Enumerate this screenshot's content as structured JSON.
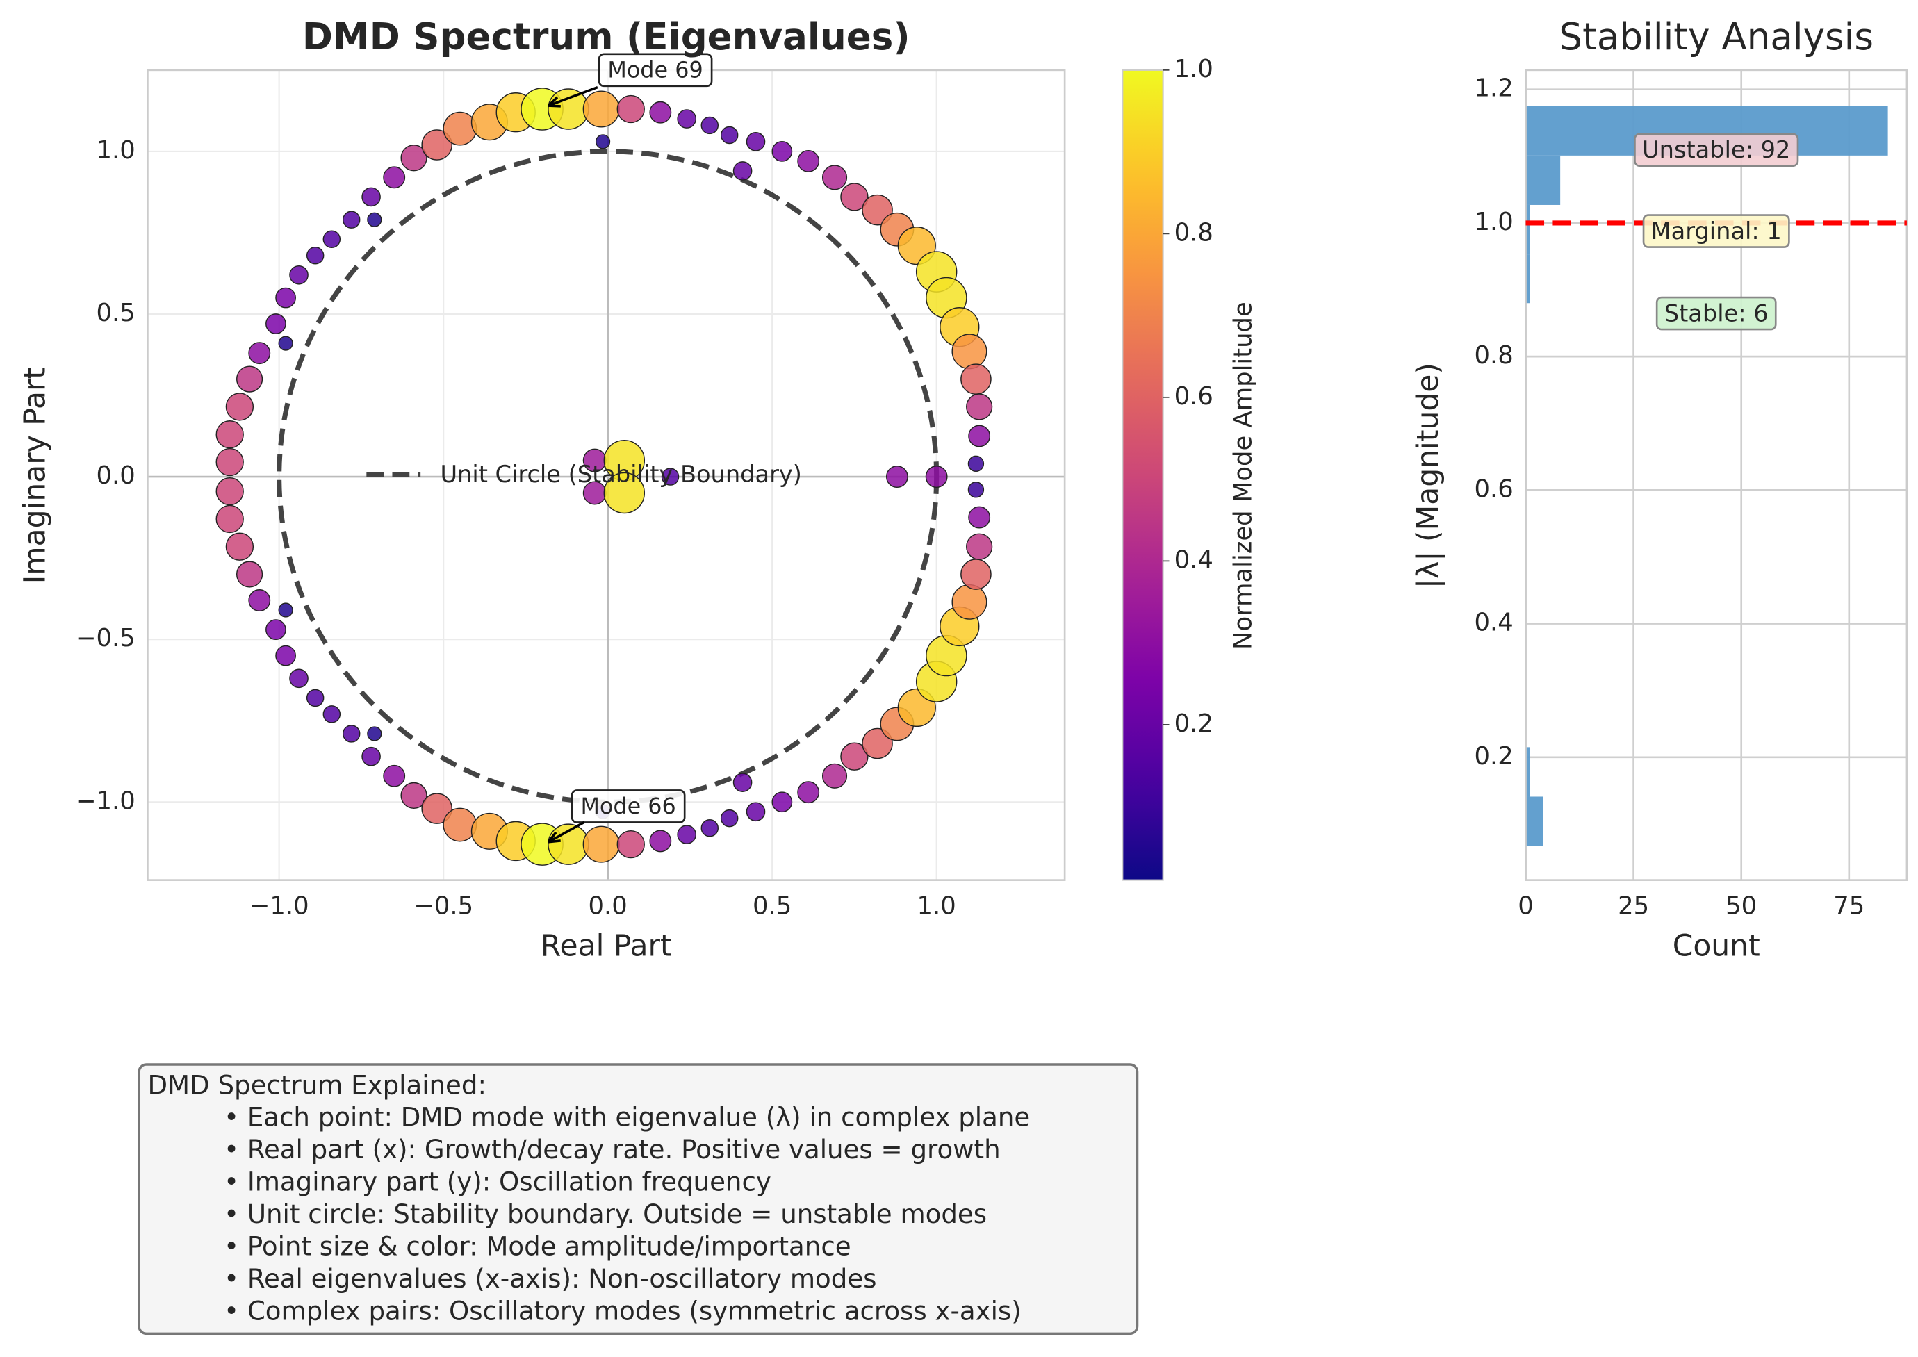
{
  "chart_data": [
    {
      "type": "scatter",
      "title": "DMD Spectrum (Eigenvalues)",
      "xlabel": "Real Part",
      "ylabel": "Imaginary Part",
      "x": [
        -1.15,
        -1.15,
        -1.12,
        -1.09,
        -1.06,
        -1.01,
        -0.98,
        -0.94,
        -0.89,
        -0.84,
        -0.78,
        -0.72,
        -0.65,
        -0.59,
        -0.52,
        -0.45,
        -0.36,
        -0.28,
        -0.2,
        -0.12,
        -0.02,
        0.07,
        0.16,
        0.24,
        0.31,
        0.37,
        0.45,
        0.53,
        0.61,
        0.69,
        0.75,
        0.82,
        0.88,
        0.94,
        1.0,
        1.03,
        1.07,
        1.1,
        1.12,
        1.13,
        1.13,
        1.12,
        -0.015,
        0.41,
        -0.71,
        -0.98,
        -0.04,
        0.05,
        -1.15,
        -1.15,
        -1.12,
        -1.09,
        -1.06,
        -1.01,
        -0.98,
        -0.94,
        -0.89,
        -0.84,
        -0.78,
        -0.72,
        -0.65,
        -0.59,
        -0.52,
        -0.45,
        -0.36,
        -0.28,
        -0.2,
        -0.12,
        -0.02,
        0.07,
        0.16,
        0.24,
        0.31,
        0.37,
        0.45,
        0.53,
        0.61,
        0.69,
        0.75,
        0.82,
        0.88,
        0.94,
        1.0,
        1.03,
        1.07,
        1.1,
        1.12,
        1.13,
        1.13,
        1.12,
        -0.015,
        0.41,
        -0.71,
        -0.98,
        -0.04,
        0.05,
        0.88,
        1.0,
        0.19
      ],
      "y": [
        0.045,
        0.13,
        0.215,
        0.3,
        0.38,
        0.47,
        0.55,
        0.62,
        0.68,
        0.73,
        0.79,
        0.86,
        0.92,
        0.98,
        1.02,
        1.07,
        1.09,
        1.12,
        1.13,
        1.13,
        1.13,
        1.13,
        1.12,
        1.1,
        1.08,
        1.05,
        1.03,
        1.0,
        0.97,
        0.92,
        0.86,
        0.82,
        0.76,
        0.71,
        0.63,
        0.55,
        0.46,
        0.385,
        0.3,
        0.215,
        0.125,
        0.04,
        1.03,
        0.94,
        0.79,
        0.41,
        0.05,
        0.05,
        -0.045,
        -0.13,
        -0.215,
        -0.3,
        -0.38,
        -0.47,
        -0.55,
        -0.62,
        -0.68,
        -0.73,
        -0.79,
        -0.86,
        -0.92,
        -0.98,
        -1.02,
        -1.07,
        -1.09,
        -1.12,
        -1.13,
        -1.13,
        -1.13,
        -1.13,
        -1.12,
        -1.1,
        -1.08,
        -1.05,
        -1.03,
        -1.0,
        -0.97,
        -0.92,
        -0.86,
        -0.82,
        -0.76,
        -0.71,
        -0.63,
        -0.55,
        -0.46,
        -0.385,
        -0.3,
        -0.215,
        -0.125,
        -0.04,
        -1.03,
        -0.94,
        -0.79,
        -0.41,
        -0.05,
        -0.05,
        0,
        0,
        0
      ],
      "amplitude": [
        0.5,
        0.5,
        0.5,
        0.45,
        0.3,
        0.25,
        0.25,
        0.2,
        0.15,
        0.15,
        0.15,
        0.2,
        0.3,
        0.45,
        0.6,
        0.7,
        0.8,
        0.9,
        1.0,
        0.95,
        0.8,
        0.5,
        0.3,
        0.2,
        0.15,
        0.15,
        0.2,
        0.25,
        0.3,
        0.4,
        0.5,
        0.6,
        0.7,
        0.85,
        0.95,
        0.95,
        0.9,
        0.75,
        0.6,
        0.45,
        0.3,
        0.1,
        0.05,
        0.2,
        0.05,
        0.05,
        0.35,
        0.95,
        0.5,
        0.5,
        0.5,
        0.45,
        0.3,
        0.25,
        0.25,
        0.2,
        0.15,
        0.15,
        0.15,
        0.2,
        0.3,
        0.45,
        0.6,
        0.7,
        0.8,
        0.9,
        1.0,
        0.95,
        0.8,
        0.5,
        0.3,
        0.2,
        0.15,
        0.15,
        0.2,
        0.25,
        0.3,
        0.4,
        0.5,
        0.6,
        0.7,
        0.85,
        0.95,
        0.95,
        0.9,
        0.75,
        0.6,
        0.45,
        0.3,
        0.1,
        0.05,
        0.2,
        0.05,
        0.05,
        0.35,
        0.95,
        0.3,
        0.3,
        0.15
      ],
      "colormap": "plasma",
      "colorbar_label": "Normalized Mode Amplitude",
      "clim": [
        0.01,
        1.0
      ],
      "cticks": [
        0.2,
        0.4,
        0.6,
        0.8,
        {
          "value": 1.0,
          "label": "1.0"
        }
      ],
      "xlim": [
        -1.4,
        1.39
      ],
      "ylim": [
        -1.24,
        1.25
      ],
      "xticks": [
        {
          "value": -1.0,
          "label": "−1.0"
        },
        {
          "value": -0.5,
          "label": "−0.5"
        },
        {
          "value": 0.0,
          "label": "0.0"
        },
        0.5,
        {
          "value": 1.0,
          "label": "1.0"
        }
      ],
      "yticks": [
        {
          "value": -1.0,
          "label": "−1.0"
        },
        {
          "value": -0.5,
          "label": "−0.5"
        },
        {
          "value": 0.0,
          "label": "0.0"
        },
        0.5,
        {
          "value": 1.0,
          "label": "1.0"
        }
      ],
      "grid": true,
      "zero_lines": true,
      "unit_circle": {
        "name": "Unit Circle (Stability Boundary)",
        "radius": 1,
        "color": "#444444"
      },
      "legend": "center",
      "annotations": [
        "Mode 69",
        "Mode 66"
      ]
    },
    {
      "type": "histogram",
      "orientation": "horizontal",
      "title": "Stability Analysis",
      "xlabel": "Count",
      "ylabel": "|λ| (Magnitude)",
      "bins": [
        0.067,
        0.141,
        0.215,
        0.289,
        0.362,
        0.436,
        0.51,
        0.584,
        0.658,
        0.732,
        0.806,
        0.88,
        0.953,
        1.027,
        1.101,
        1.175
      ],
      "counts": [
        4,
        1,
        0,
        0,
        0,
        0,
        0,
        0,
        0,
        0,
        0,
        1,
        1,
        8,
        84
      ],
      "color": "#5b9bcc",
      "xlim": [
        0,
        88.4
      ],
      "ylim": [
        0.016,
        1.229
      ],
      "xticks": [
        0,
        25,
        50,
        75
      ],
      "yticks": [
        0.2,
        0.4,
        0.6,
        0.8,
        {
          "value": 1.0,
          "label": "1.0"
        },
        1.2
      ],
      "grid": true,
      "threshold": {
        "value": 1.0,
        "color": "#ff0000"
      },
      "annotations": [
        {
          "text": "Unstable: 92",
          "color": "#f3cdd2"
        },
        {
          "text": "Marginal: 1",
          "color": "#fdf7c8"
        },
        {
          "text": "Stable: 6",
          "color": "#cdf2cd"
        }
      ]
    }
  ],
  "text_box": {
    "title": "DMD Spectrum Explained:",
    "lines": [
      "• Each point: DMD mode with eigenvalue (λ) in complex plane",
      "• Real part (x): Growth/decay rate. Positive values = growth",
      "• Imaginary part (y): Oscillation frequency",
      "• Unit circle: Stability boundary. Outside = unstable modes",
      "• Point size & color: Mode amplitude/importance",
      "• Real eigenvalues (x-axis): Non-oscillatory modes",
      "• Complex pairs: Oscillatory modes (symmetric across x-axis)"
    ]
  }
}
